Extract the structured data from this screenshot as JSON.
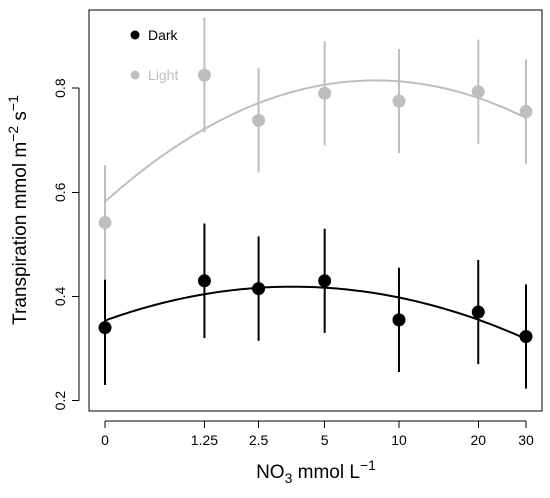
{
  "chart_data": {
    "type": "scatter",
    "title": "",
    "xlabel": "NO3 mmol L−1",
    "xlabel_parts": {
      "base": "NO",
      "sub": "3",
      "unit": " mmol L",
      "sup": "−1"
    },
    "ylabel": "Transpiration mmol m−2 s−1",
    "ylabel_parts": {
      "base": "Transpiration mmol m",
      "sup1": "−2",
      "mid": " s",
      "sup2": "−1"
    },
    "x_scale": "log(x+1)",
    "x_ticks": [
      0,
      1.25,
      2.5,
      5,
      10,
      20,
      30
    ],
    "x_tick_labels": [
      "0",
      "1.25",
      "2.5",
      "5",
      "10",
      "20",
      "30"
    ],
    "ylim": [
      0.18,
      0.95
    ],
    "y_ticks": [
      0.2,
      0.4,
      0.6,
      0.8
    ],
    "y_tick_labels": [
      "0.2",
      "0.4",
      "0.6",
      "0.8"
    ],
    "grid": false,
    "legend_position": "top-left",
    "series": [
      {
        "name": "Dark",
        "color": "#000000",
        "x": [
          0,
          1.25,
          2.5,
          5,
          10,
          20,
          30
        ],
        "y": [
          0.34,
          0.43,
          0.415,
          0.43,
          0.355,
          0.37,
          0.323
        ],
        "error": [
          0.11,
          0.11,
          0.1,
          0.1,
          0.1,
          0.1,
          0.1
        ],
        "fit_curve": true
      },
      {
        "name": "Light",
        "color": "#bebebe",
        "x": [
          0,
          1.25,
          2.5,
          5,
          10,
          20,
          30
        ],
        "y": [
          0.542,
          0.825,
          0.738,
          0.79,
          0.775,
          0.793,
          0.755
        ],
        "error": [
          0.11,
          0.11,
          0.1,
          0.1,
          0.1,
          0.1,
          0.1
        ],
        "fit_curve": true
      }
    ]
  }
}
